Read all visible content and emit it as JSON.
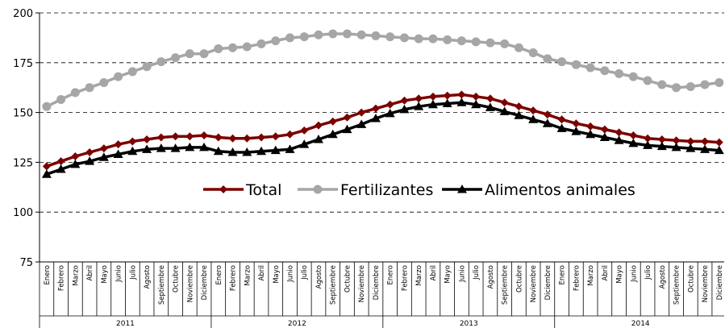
{
  "chart_data": {
    "type": "line",
    "title": "",
    "xlabel": "",
    "ylabel": "",
    "ylim": [
      75,
      200
    ],
    "yticks": [
      "75",
      "100",
      "125",
      "150",
      "175",
      "200"
    ],
    "grid": "dashed horizontal",
    "legend_position": "center",
    "month_labels": [
      "Enero",
      "Febrero",
      "Marzo",
      "Abril",
      "Mayo",
      "Junio",
      "Julio",
      "Agosto",
      "Septiembre",
      "Octubre",
      "Noviembre",
      "Diciembre"
    ],
    "years": [
      "2011",
      "2012",
      "2013",
      "2014"
    ],
    "series": [
      {
        "name": "Total",
        "color": "#7b0000",
        "marker": "diamond",
        "values": [
          123,
          125.5,
          128,
          130,
          132,
          134,
          135.5,
          136.5,
          137.5,
          138,
          138,
          138.5,
          137.5,
          137,
          137,
          137.5,
          138,
          139,
          141,
          143.5,
          145.5,
          147.5,
          150,
          152,
          154,
          156,
          157,
          158,
          158.5,
          159,
          158,
          157,
          155,
          153,
          151,
          149,
          146.5,
          144.5,
          143,
          141.5,
          140,
          138.5,
          137,
          136.5,
          136,
          135.5,
          135.5,
          135
        ]
      },
      {
        "name": "Fertilizantes",
        "color": "#a6a6a6",
        "marker": "circle",
        "values": [
          153,
          156.5,
          160,
          162.5,
          165,
          168,
          170.5,
          173,
          175.5,
          177.5,
          179.5,
          179.5,
          182,
          182.5,
          183,
          184.5,
          186,
          187.5,
          188,
          189,
          189.5,
          189.5,
          189,
          188.5,
          188,
          187.5,
          187,
          187,
          186.5,
          186,
          185.5,
          185,
          184.5,
          182.5,
          180,
          177,
          175.5,
          174,
          172.5,
          171,
          169.5,
          168,
          166,
          164,
          162.5,
          163,
          164,
          165
        ]
      },
      {
        "name": "Alimentos animales",
        "color": "#000000",
        "marker": "triangle",
        "values": [
          119,
          121.5,
          124,
          125.5,
          127.5,
          129,
          130.5,
          131.5,
          132,
          132,
          132.5,
          132.5,
          130.5,
          130,
          130,
          130.5,
          131,
          131.5,
          134,
          136.5,
          139,
          141.5,
          144,
          147,
          149.5,
          151.5,
          153,
          154,
          154.5,
          155,
          154,
          152.5,
          150.5,
          148.5,
          146.5,
          144.5,
          142,
          140.5,
          139,
          137.5,
          136,
          134.5,
          133.5,
          133,
          132.5,
          132,
          131.5,
          131
        ]
      }
    ]
  }
}
